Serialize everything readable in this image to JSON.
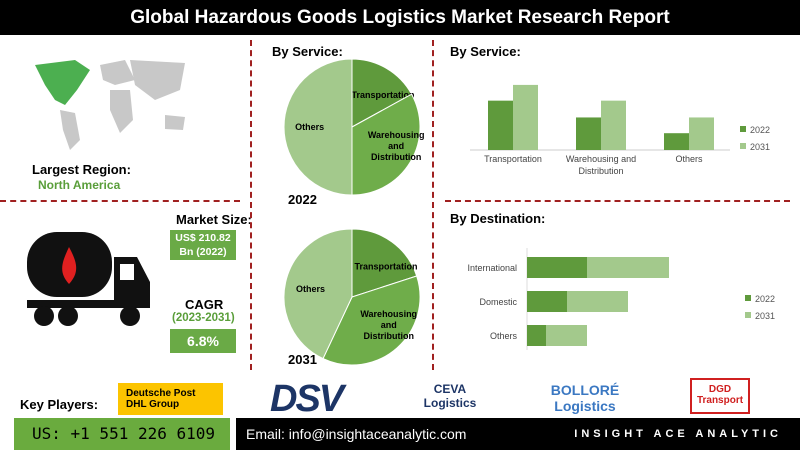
{
  "title": "Global Hazardous Goods Logistics Market Research Report",
  "region": {
    "label": "Largest Region:",
    "value": "North America"
  },
  "market_size": {
    "label": "Market Size:",
    "value": "US$ 210.82 Bn (2022)"
  },
  "cagr": {
    "label": "CAGR",
    "period": "(2023-2031)",
    "value": "6.8%"
  },
  "pie_heading": "By Service:",
  "key_players": {
    "label": "Key Players:",
    "players": [
      "Deutsche Post DHL Group",
      "DSV",
      "CEVA Logistics",
      "BOLLORÉ Logistics",
      "DGD Transport"
    ]
  },
  "footer": {
    "phone": "US: +1 551 226 6109",
    "email": "Email: info@insightaceanalytic.com",
    "brand": "INSIGHT ACE ANALYTIC"
  },
  "colors": {
    "dark": "#5f9a3c",
    "light": "#a3c98c",
    "mid": "#6fad4a"
  },
  "chart_data": [
    {
      "type": "pie",
      "title": "2022",
      "labels": [
        "Transportation",
        "Warehousing and Distribution",
        "Others"
      ],
      "values": [
        17,
        33,
        50
      ]
    },
    {
      "type": "pie",
      "title": "2031",
      "labels": [
        "Transportation",
        "Warehousing and Distribution",
        "Others"
      ],
      "values": [
        20,
        37,
        43
      ]
    },
    {
      "type": "bar",
      "title": "By Service:",
      "categories": [
        "Transportation",
        "Warehousing and Distribution",
        "Others"
      ],
      "series": [
        {
          "name": "2022",
          "values": [
            47,
            31,
            16
          ]
        },
        {
          "name": "2031",
          "values": [
            62,
            47,
            31
          ]
        }
      ],
      "legend": "right"
    },
    {
      "type": "bar",
      "orientation": "horizontal",
      "stacked": true,
      "title": "By Destination:",
      "categories": [
        "International",
        "Domestic",
        "Others"
      ],
      "series": [
        {
          "name": "2022",
          "values": [
            60,
            40,
            19
          ]
        },
        {
          "name": "2031",
          "values": [
            82,
            61,
            41
          ]
        }
      ],
      "legend": "right"
    }
  ]
}
